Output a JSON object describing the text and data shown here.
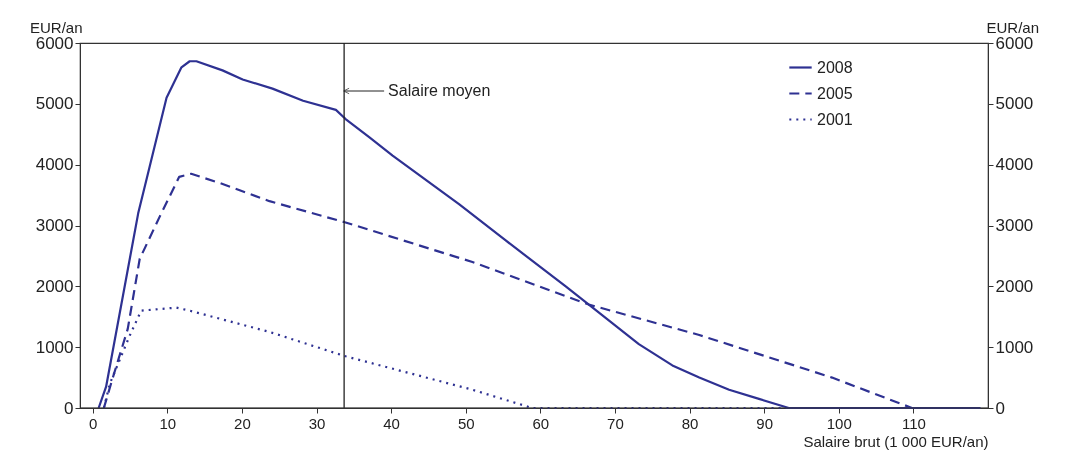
{
  "chart_data": {
    "type": "line",
    "xlabel": "Salaire brut (1 000 EUR/an)",
    "ylabel": "EUR/an",
    "y2label": "EUR/an",
    "xlim": [
      -1.7,
      120
    ],
    "xticks": [
      0,
      10,
      20,
      30,
      40,
      50,
      60,
      70,
      80,
      90,
      100,
      110
    ],
    "ylim": [
      0,
      6000
    ],
    "yticks": [
      0,
      1000,
      2000,
      3000,
      4000,
      5000,
      6000
    ],
    "y2lim": [
      0,
      6000
    ],
    "y2ticks": [
      0,
      1000,
      2000,
      3000,
      4000,
      5000,
      6000
    ],
    "grid": false,
    "legend": "top right",
    "marker": "none",
    "ref_lines": [
      {
        "axis": "x",
        "value": 33.7,
        "label": "Salaire moyen",
        "color": "#222222"
      }
    ],
    "series": [
      {
        "name": "2008",
        "color": "#2e3192",
        "line_style": "solid",
        "x": [
          0.8,
          1.8,
          6.1,
          7.6,
          9.9,
          11.9,
          13,
          13.9,
          17.4,
          20.1,
          24.1,
          28.2,
          32.6,
          33.9,
          37.1,
          40.2,
          49.1,
          55.4,
          63.4,
          66.5,
          73.2,
          77.7,
          81.3,
          85.3,
          89.3,
          93.3,
          119
        ],
        "values": [
          0,
          350,
          3200,
          3950,
          5100,
          5600,
          5700,
          5700,
          5550,
          5400,
          5250,
          5050,
          4900,
          4750,
          4450,
          4150,
          3350,
          2750,
          2000,
          1700,
          1050,
          700,
          500,
          300,
          150,
          0,
          0
        ]
      },
      {
        "name": "2005",
        "color": "#2e3192",
        "line_style": "dashed",
        "x": [
          1.5,
          2.7,
          4.7,
          6.3,
          9,
          11.6,
          13.2,
          17,
          23.7,
          33.9,
          50.9,
          66.5,
          81.3,
          99.1,
          109.8,
          119
        ],
        "values": [
          0,
          500,
          1300,
          2450,
          3150,
          3800,
          3850,
          3700,
          3400,
          3050,
          2400,
          1700,
          1200,
          500,
          0,
          0
        ]
      },
      {
        "name": "2001",
        "color": "#2e3192",
        "line_style": "dotted",
        "x": [
          1.5,
          2.3,
          5,
          6.5,
          11.2,
          13,
          23.7,
          33.9,
          50.9,
          58.9,
          119
        ],
        "values": [
          0,
          400,
          1200,
          1600,
          1650,
          1600,
          1250,
          850,
          300,
          0,
          0
        ]
      }
    ]
  }
}
